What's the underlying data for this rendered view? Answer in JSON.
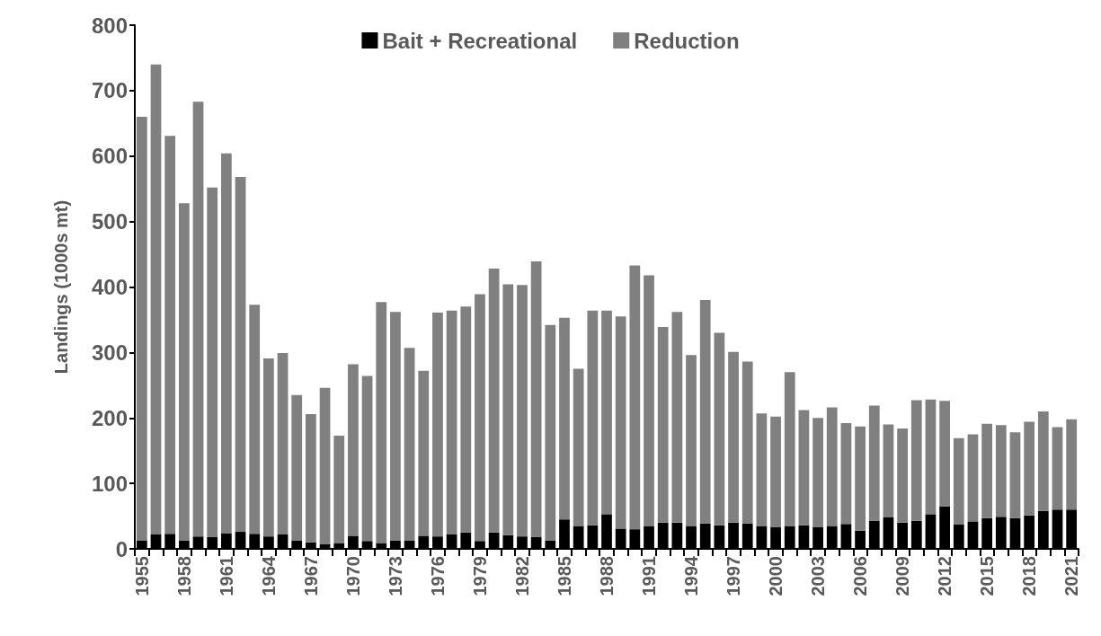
{
  "chart_data": {
    "type": "bar",
    "stacked": true,
    "ylabel": "Landings (1000s mt)",
    "ylim": [
      0,
      800
    ],
    "yticks": [
      0,
      100,
      200,
      300,
      400,
      500,
      600,
      700,
      800
    ],
    "grid": false,
    "legend": "top",
    "categories": [
      "1955",
      null,
      null,
      "1958",
      null,
      null,
      "1961",
      null,
      null,
      "1964",
      null,
      null,
      "1967",
      null,
      null,
      "1970",
      null,
      null,
      "1973",
      null,
      null,
      "1976",
      null,
      null,
      "1979",
      null,
      null,
      "1982",
      null,
      null,
      "1985",
      null,
      null,
      "1988",
      null,
      null,
      "1991",
      null,
      null,
      "1994",
      null,
      null,
      "1997",
      null,
      null,
      "2000",
      null,
      null,
      "2003",
      null,
      null,
      "2006",
      null,
      null,
      "2009",
      null,
      null,
      "2012",
      null,
      null,
      "2015",
      null,
      null,
      "2018",
      null,
      null,
      "2021"
    ],
    "series": [
      {
        "name": "Bait + Recreational",
        "color": "#000000",
        "values": [
          13,
          22,
          23,
          13,
          19,
          18,
          24,
          26,
          23,
          19,
          22,
          13,
          10,
          7,
          9,
          20,
          12,
          9,
          13,
          13,
          20,
          19,
          22,
          25,
          12,
          25,
          21,
          19,
          18,
          13,
          45,
          35,
          36,
          53,
          31,
          30,
          35,
          40,
          40,
          35,
          39,
          36,
          40,
          39,
          35,
          33,
          35,
          36,
          33,
          35,
          38,
          28,
          43,
          48,
          40,
          43,
          53,
          65,
          37,
          42,
          47,
          49,
          47,
          51,
          58,
          60,
          60
        ]
      },
      {
        "name": "Reduction",
        "color": "#808080",
        "values": [
          647,
          718,
          608,
          515,
          664,
          534,
          580,
          542,
          350,
          272,
          277,
          222,
          196,
          239,
          164,
          262,
          252,
          368,
          349,
          294,
          252,
          342,
          342,
          345,
          377,
          403,
          383,
          384,
          421,
          329,
          308,
          240,
          328,
          311,
          324,
          403,
          383,
          299,
          322,
          261,
          341,
          294,
          261,
          247,
          172,
          169,
          235,
          176,
          167,
          181,
          154,
          159,
          176,
          142,
          144,
          184,
          175,
          161,
          132,
          133,
          144,
          140,
          131,
          143,
          152,
          126,
          138
        ]
      }
    ]
  }
}
